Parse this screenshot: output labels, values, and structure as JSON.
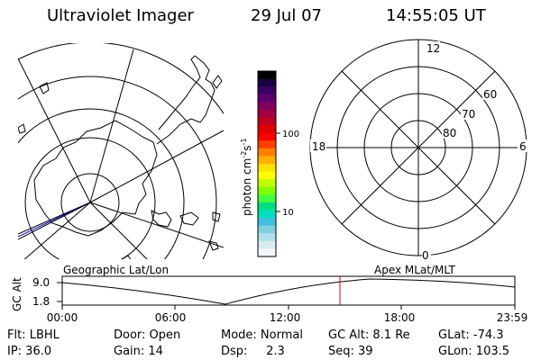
{
  "header": {
    "title": "Ultraviolet Imager",
    "date": "29 Jul 07",
    "time": "14:55:05 UT"
  },
  "colorbar": {
    "label": "photon cm",
    "label_sup1": "-2",
    "label_mid": "s",
    "label_sup2": "-1",
    "tick_100": "100",
    "tick_10": "10",
    "colors": [
      "#000000",
      "#1a0040",
      "#3a0060",
      "#5c0070",
      "#800060",
      "#a00040",
      "#c00020",
      "#e00000",
      "#ff0000",
      "#ff4000",
      "#ff8000",
      "#ffb000",
      "#ffe000",
      "#ffff00",
      "#c0ff00",
      "#80ff00",
      "#40ff40",
      "#00e080",
      "#00e0c0",
      "#40c0e0",
      "#80d0e0",
      "#b0e0e8",
      "#d8ecf0",
      "#f0f8f8"
    ]
  },
  "right_plot": {
    "labels": {
      "top": "12",
      "bottom": "0",
      "left": "18",
      "right": "6",
      "lat60": "60",
      "lat70": "70",
      "lat80": "80"
    }
  },
  "timeline": {
    "left_label": "Geographic Lat/Lon",
    "right_label": "Apex MLat/MLT",
    "axis_title": "GC Alt",
    "y_top": "9.0",
    "y_bottom": "1.8",
    "x_ticks": [
      "00:00",
      "06:00",
      "12:00",
      "18:00",
      "23:59"
    ],
    "marker_color": "#dd0000"
  },
  "footer": {
    "flt": "Flt: LBHL",
    "door": "Door: Open",
    "mode": "Mode: Normal",
    "gcalt": "GC Alt: 8.1 Re",
    "glat": "GLat: -74.3",
    "ip": "IP: 36.0",
    "gain": "Gain: 14",
    "dsp": "Dsp:     2.3",
    "seq": "Seq: 39",
    "glon": "GLon: 103.5"
  }
}
